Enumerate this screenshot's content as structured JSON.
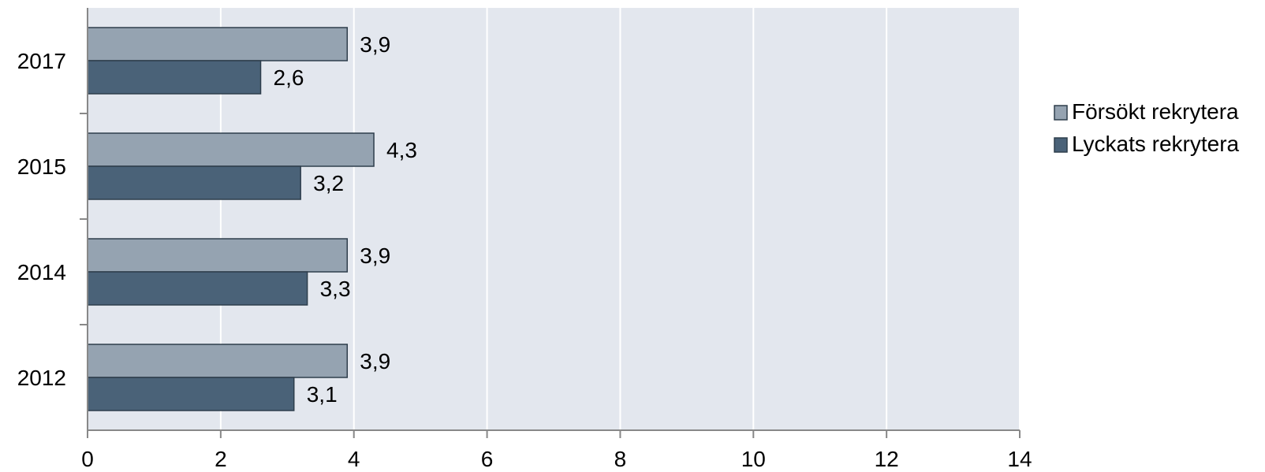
{
  "chart_data": {
    "type": "bar",
    "orientation": "horizontal",
    "categories": [
      "2017",
      "2015",
      "2014",
      "2012"
    ],
    "series": [
      {
        "name": "Försökt rekrytera",
        "color": "#95a3b1",
        "values": [
          3.9,
          4.3,
          3.9,
          3.9
        ],
        "labels": [
          "3,9",
          "4,3",
          "3,9",
          "3,9"
        ]
      },
      {
        "name": "Lyckats rekrytera",
        "color": "#4a6278",
        "values": [
          2.6,
          3.2,
          3.3,
          3.1
        ],
        "labels": [
          "2,6",
          "3,2",
          "3,3",
          "3,1"
        ]
      }
    ],
    "xlim": [
      0,
      14
    ],
    "xticks": [
      0,
      2,
      4,
      6,
      8,
      10,
      12,
      14
    ],
    "plot_background": "#e3e7ee",
    "grid": true,
    "legend": "right"
  }
}
